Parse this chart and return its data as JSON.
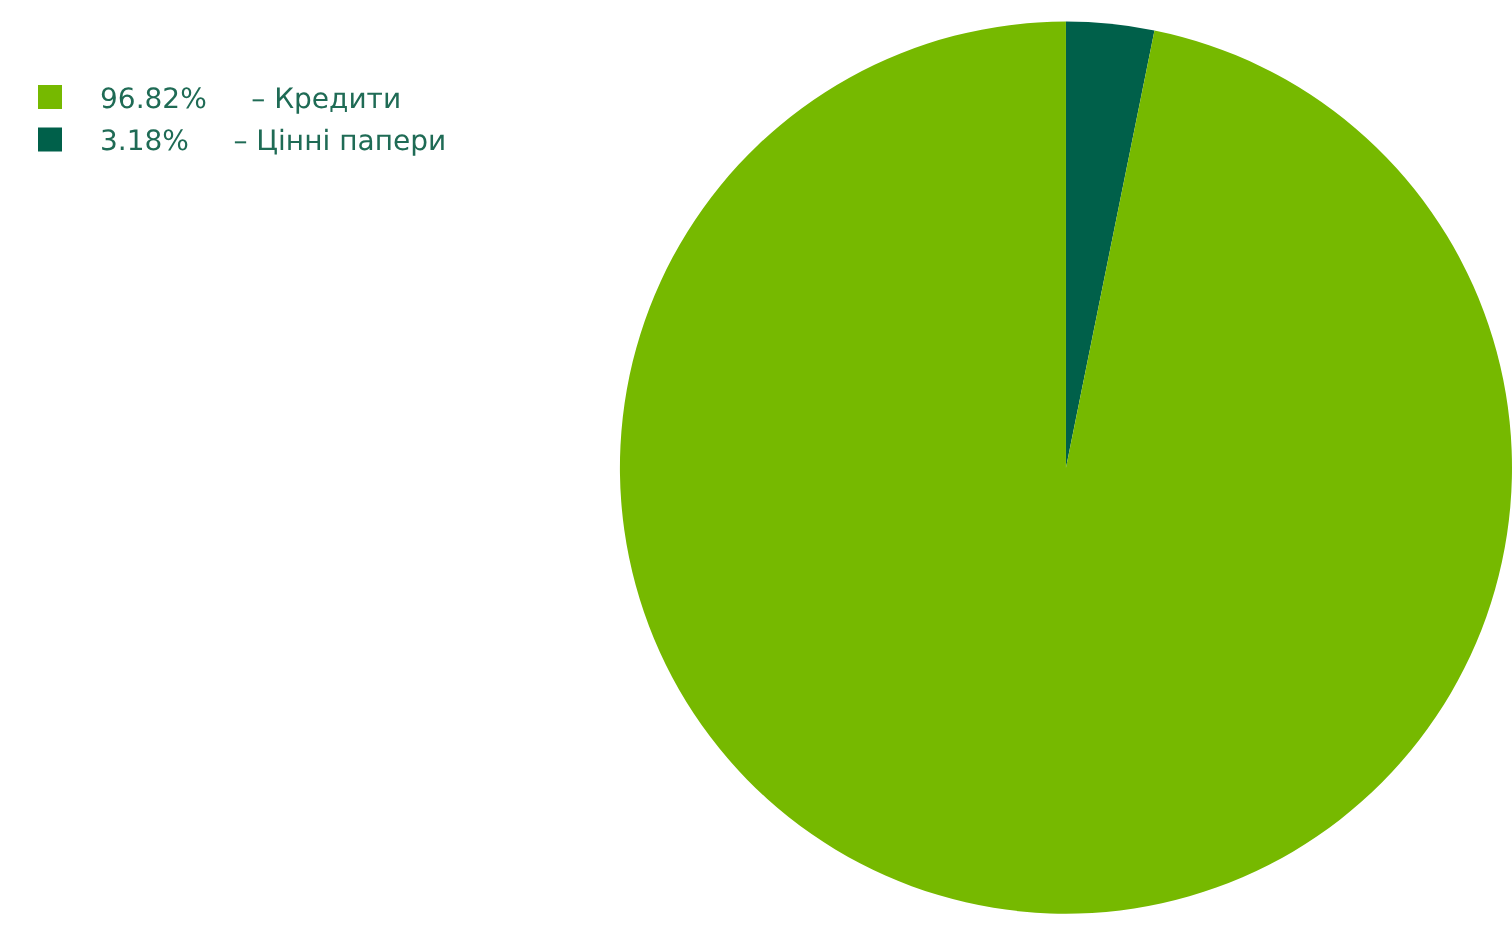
{
  "chart_data": {
    "type": "pie",
    "categories": [
      "– Кредити",
      "– Цінні папери"
    ],
    "values": [
      96.82,
      3.18
    ],
    "value_labels": [
      "96.82%",
      "3.18%"
    ],
    "colors": [
      "#76b900",
      "#00604a"
    ],
    "legend": "top left"
  }
}
